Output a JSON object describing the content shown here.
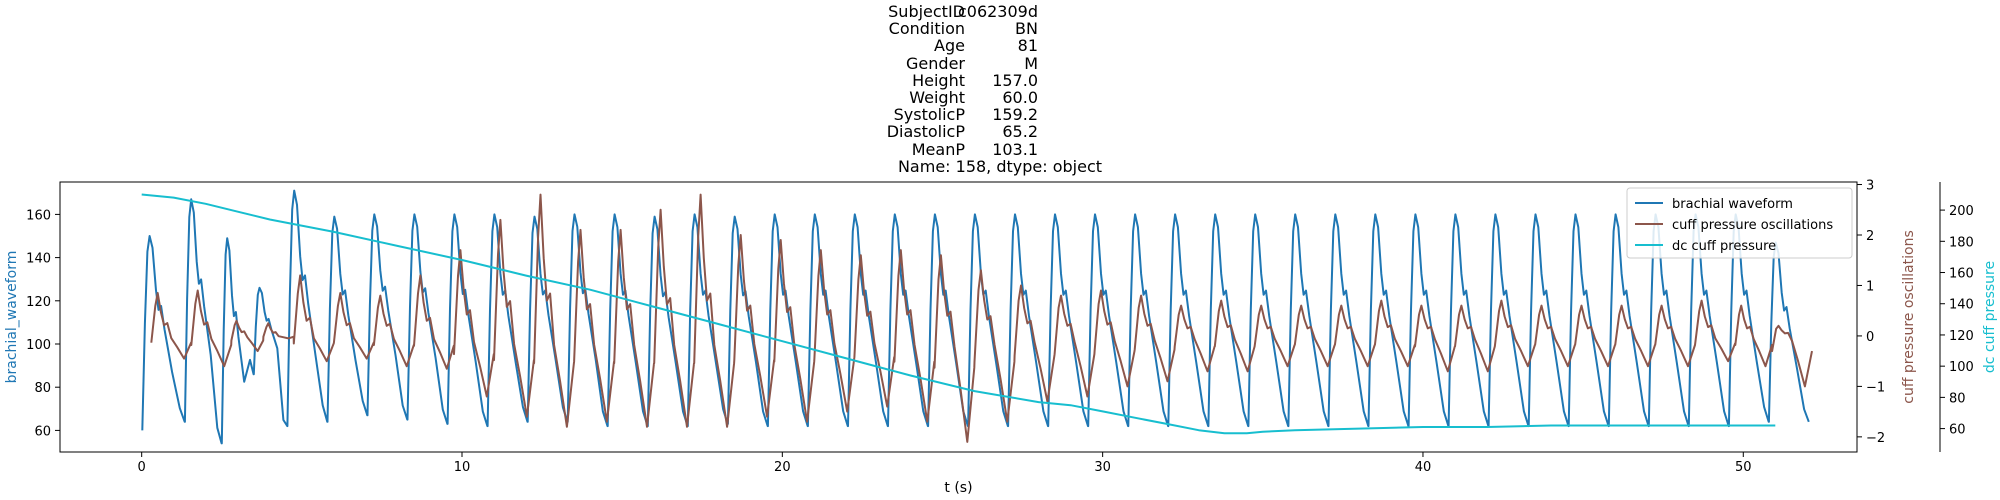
{
  "figure_title": {
    "rows": [
      {
        "key": "SubjectID",
        "value": "c062309d"
      },
      {
        "key": "Condition",
        "value": "BN"
      },
      {
        "key": "Age",
        "value": "81"
      },
      {
        "key": "Gender",
        "value": "M"
      },
      {
        "key": "Height",
        "value": "157.0"
      },
      {
        "key": "Weight",
        "value": "60.0"
      },
      {
        "key": "SystolicP",
        "value": "159.2"
      },
      {
        "key": "DiastolicP",
        "value": "65.2"
      },
      {
        "key": "MeanP",
        "value": "103.1"
      }
    ],
    "footer": "Name: 158, dtype: object"
  },
  "chart_data": {
    "type": "line",
    "xlabel": "t (s)",
    "xlim": [
      -2.55,
      53.55
    ],
    "xticks": [
      0,
      10,
      20,
      30,
      40,
      50
    ],
    "grid": false,
    "legend_position": "upper right",
    "axes": {
      "left": {
        "label": "brachial_waveform",
        "color": "#1f77b4",
        "ylim": [
          50,
          175
        ],
        "ticks": [
          60,
          80,
          100,
          120,
          140,
          160
        ]
      },
      "right": {
        "label": "cuff pressure oscillations",
        "color": "#8c564b",
        "ylim": [
          -2.3,
          3.05
        ],
        "ticks": [
          -2,
          -1,
          0,
          1,
          2,
          3
        ]
      },
      "right2": {
        "label": "dc cuff pressure",
        "color": "#17becf",
        "ylim": [
          45,
          218
        ],
        "ticks": [
          60,
          80,
          100,
          120,
          140,
          160,
          180,
          200
        ]
      }
    },
    "series": [
      {
        "name": "brachial waveform",
        "axis": "left",
        "color": "#1f77b4",
        "beats": [
          {
            "t": 0.02,
            "peak": 150,
            "min": 60
          },
          {
            "t": 1.35,
            "peak": 167,
            "min": 64
          },
          {
            "t": 2.5,
            "peak": 149,
            "min": 54
          },
          {
            "t": 3.5,
            "peak": 126,
            "min": 86
          },
          {
            "t": 4.55,
            "peak": 171,
            "min": 62
          },
          {
            "t": 5.8,
            "peak": 159,
            "min": 64
          },
          {
            "t": 7.05,
            "peak": 160,
            "min": 67
          },
          {
            "t": 8.3,
            "peak": 160,
            "min": 65
          },
          {
            "t": 9.55,
            "peak": 160,
            "min": 63
          },
          {
            "t": 10.8,
            "peak": 160,
            "min": 62
          },
          {
            "t": 12.05,
            "peak": 159,
            "min": 64
          },
          {
            "t": 13.3,
            "peak": 160,
            "min": 64
          },
          {
            "t": 14.55,
            "peak": 160,
            "min": 62
          },
          {
            "t": 15.8,
            "peak": 159,
            "min": 62
          },
          {
            "t": 17.05,
            "peak": 160,
            "min": 62
          },
          {
            "t": 18.3,
            "peak": 159,
            "min": 63
          },
          {
            "t": 19.55,
            "peak": 160,
            "min": 62
          },
          {
            "t": 20.8,
            "peak": 160,
            "min": 62
          },
          {
            "t": 22.05,
            "peak": 160,
            "min": 62
          },
          {
            "t": 23.3,
            "peak": 160,
            "min": 62
          },
          {
            "t": 24.55,
            "peak": 160,
            "min": 62
          },
          {
            "t": 25.8,
            "peak": 160,
            "min": 62
          },
          {
            "t": 27.05,
            "peak": 160,
            "min": 62
          },
          {
            "t": 28.3,
            "peak": 160,
            "min": 62
          },
          {
            "t": 29.55,
            "peak": 160,
            "min": 62
          },
          {
            "t": 30.8,
            "peak": 160,
            "min": 62
          },
          {
            "t": 32.05,
            "peak": 160,
            "min": 62
          },
          {
            "t": 33.3,
            "peak": 160,
            "min": 62
          },
          {
            "t": 34.55,
            "peak": 160,
            "min": 62
          },
          {
            "t": 35.8,
            "peak": 160,
            "min": 62
          },
          {
            "t": 37.05,
            "peak": 160,
            "min": 62
          },
          {
            "t": 38.3,
            "peak": 160,
            "min": 62
          },
          {
            "t": 39.55,
            "peak": 160,
            "min": 62
          },
          {
            "t": 40.8,
            "peak": 160,
            "min": 62
          },
          {
            "t": 42.05,
            "peak": 160,
            "min": 62
          },
          {
            "t": 43.3,
            "peak": 160,
            "min": 62
          },
          {
            "t": 44.55,
            "peak": 160,
            "min": 62
          },
          {
            "t": 45.8,
            "peak": 160,
            "min": 62
          },
          {
            "t": 47.05,
            "peak": 160,
            "min": 62
          },
          {
            "t": 48.3,
            "peak": 160,
            "min": 62
          },
          {
            "t": 49.55,
            "peak": 160,
            "min": 62
          },
          {
            "t": 50.8,
            "peak": 147,
            "min": 64
          }
        ]
      },
      {
        "name": "cuff pressure oscillations",
        "axis": "right",
        "color": "#8c564b",
        "beats": [
          {
            "t": 0.3,
            "peak": 0.85,
            "trough": -0.45
          },
          {
            "t": 1.55,
            "peak": 0.9,
            "trough": -0.6
          },
          {
            "t": 2.8,
            "peak": 0.3,
            "trough": -0.3
          },
          {
            "t": 3.8,
            "peak": 0.25,
            "trough": -0.05
          },
          {
            "t": 4.75,
            "peak": 1.2,
            "trough": -0.5
          },
          {
            "t": 6.0,
            "peak": 0.85,
            "trough": -0.45
          },
          {
            "t": 7.25,
            "peak": 0.8,
            "trough": -0.6
          },
          {
            "t": 8.5,
            "peak": 1.2,
            "trough": -0.65
          },
          {
            "t": 9.75,
            "peak": 1.7,
            "trough": -1.2
          },
          {
            "t": 11.0,
            "peak": 2.3,
            "trough": -1.6
          },
          {
            "t": 12.25,
            "peak": 2.8,
            "trough": -1.8
          },
          {
            "t": 13.5,
            "peak": 2.1,
            "trough": -1.7
          },
          {
            "t": 14.75,
            "peak": 2.1,
            "trough": -1.8
          },
          {
            "t": 16.0,
            "peak": 2.5,
            "trough": -1.8
          },
          {
            "t": 17.25,
            "peak": 2.8,
            "trough": -1.8
          },
          {
            "t": 18.5,
            "peak": 2.0,
            "trough": -1.6
          },
          {
            "t": 19.75,
            "peak": 1.9,
            "trough": -1.7
          },
          {
            "t": 21.0,
            "peak": 1.7,
            "trough": -1.5
          },
          {
            "t": 22.25,
            "peak": 1.6,
            "trough": -1.4
          },
          {
            "t": 23.5,
            "peak": 1.7,
            "trough": -1.7
          },
          {
            "t": 24.75,
            "peak": 1.6,
            "trough": -2.1
          },
          {
            "t": 26.0,
            "peak": 1.3,
            "trough": -1.7
          },
          {
            "t": 27.25,
            "peak": 1.0,
            "trough": -1.3
          },
          {
            "t": 28.5,
            "peak": 0.8,
            "trough": -1.2
          },
          {
            "t": 29.75,
            "peak": 0.9,
            "trough": -1.0
          },
          {
            "t": 31.0,
            "peak": 0.8,
            "trough": -0.9
          },
          {
            "t": 32.25,
            "peak": 0.6,
            "trough": -0.7
          },
          {
            "t": 33.5,
            "peak": 0.7,
            "trough": -0.7
          },
          {
            "t": 34.75,
            "peak": 0.6,
            "trough": -0.6
          },
          {
            "t": 36.0,
            "peak": 0.6,
            "trough": -0.6
          },
          {
            "t": 37.25,
            "peak": 0.6,
            "trough": -0.6
          },
          {
            "t": 38.5,
            "peak": 0.7,
            "trough": -0.6
          },
          {
            "t": 39.75,
            "peak": 0.6,
            "trough": -0.7
          },
          {
            "t": 41.0,
            "peak": 0.6,
            "trough": -0.7
          },
          {
            "t": 42.25,
            "peak": 0.7,
            "trough": -0.6
          },
          {
            "t": 43.5,
            "peak": 0.6,
            "trough": -0.6
          },
          {
            "t": 44.75,
            "peak": 0.6,
            "trough": -0.6
          },
          {
            "t": 46.0,
            "peak": 0.6,
            "trough": -0.6
          },
          {
            "t": 47.25,
            "peak": 0.6,
            "trough": -0.6
          },
          {
            "t": 48.5,
            "peak": 0.7,
            "trough": -0.5
          },
          {
            "t": 49.75,
            "peak": 0.6,
            "trough": -0.6
          },
          {
            "t": 50.9,
            "peak": 0.2,
            "trough": -1.0
          }
        ]
      },
      {
        "name": "dc cuff pressure",
        "axis": "right2",
        "color": "#17becf",
        "x": [
          0,
          1,
          2,
          3,
          4,
          6,
          8,
          10,
          12,
          14,
          16,
          18,
          20,
          22,
          24,
          26,
          28,
          29,
          30,
          31,
          32,
          33,
          33.8,
          34.5,
          35,
          36,
          38,
          40,
          42,
          44,
          46,
          48,
          50,
          51
        ],
        "y": [
          210,
          208,
          204,
          199,
          194,
          186,
          177,
          168,
          158,
          149,
          138,
          127,
          116,
          105,
          94,
          84,
          77,
          75,
          71,
          67,
          63,
          59,
          57,
          57,
          58,
          59,
          60,
          61,
          61,
          62,
          62,
          62,
          62,
          62
        ]
      }
    ]
  }
}
